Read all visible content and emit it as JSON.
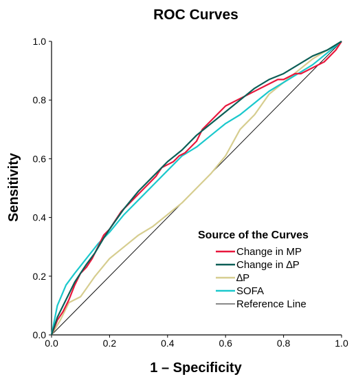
{
  "chart_data": {
    "type": "line",
    "title": "ROC Curves",
    "xlabel": "1 – Specificity",
    "ylabel": "Sensitivity",
    "xlim": [
      0,
      1
    ],
    "ylim": [
      0,
      1
    ],
    "xticks": [
      "0.0",
      "0.2",
      "0.4",
      "0.6",
      "0.8",
      "1.0"
    ],
    "yticks": [
      "0.0",
      "0.2",
      "0.4",
      "0.6",
      "0.8",
      "1.0"
    ],
    "grid": false,
    "legend": {
      "title": "Source of the Curves",
      "placement": "bottom-right"
    },
    "series": [
      {
        "name": "Change in MP",
        "color": "#e8173c",
        "x": [
          0,
          0.02,
          0.04,
          0.06,
          0.08,
          0.1,
          0.12,
          0.14,
          0.16,
          0.18,
          0.2,
          0.22,
          0.24,
          0.26,
          0.28,
          0.3,
          0.32,
          0.34,
          0.36,
          0.38,
          0.4,
          0.42,
          0.44,
          0.46,
          0.48,
          0.5,
          0.52,
          0.54,
          0.56,
          0.58,
          0.6,
          0.62,
          0.64,
          0.66,
          0.68,
          0.7,
          0.72,
          0.74,
          0.76,
          0.78,
          0.8,
          0.82,
          0.84,
          0.86,
          0.88,
          0.9,
          0.92,
          0.94,
          0.96,
          0.98,
          1.0
        ],
        "y": [
          0,
          0.05,
          0.08,
          0.12,
          0.17,
          0.21,
          0.23,
          0.26,
          0.3,
          0.34,
          0.36,
          0.39,
          0.42,
          0.44,
          0.46,
          0.48,
          0.5,
          0.52,
          0.54,
          0.57,
          0.58,
          0.59,
          0.61,
          0.62,
          0.64,
          0.66,
          0.7,
          0.72,
          0.74,
          0.76,
          0.78,
          0.79,
          0.8,
          0.81,
          0.82,
          0.83,
          0.84,
          0.85,
          0.86,
          0.87,
          0.87,
          0.88,
          0.89,
          0.89,
          0.9,
          0.91,
          0.92,
          0.93,
          0.95,
          0.97,
          1.0
        ]
      },
      {
        "name": "Change in ∆P",
        "color": "#0b5e56",
        "x": [
          0,
          0.02,
          0.04,
          0.06,
          0.08,
          0.1,
          0.12,
          0.15,
          0.18,
          0.2,
          0.25,
          0.3,
          0.35,
          0.4,
          0.45,
          0.5,
          0.55,
          0.6,
          0.65,
          0.7,
          0.75,
          0.8,
          0.85,
          0.9,
          0.95,
          1.0
        ],
        "y": [
          0,
          0.06,
          0.1,
          0.14,
          0.18,
          0.21,
          0.24,
          0.28,
          0.33,
          0.36,
          0.43,
          0.49,
          0.54,
          0.59,
          0.63,
          0.68,
          0.72,
          0.76,
          0.8,
          0.84,
          0.87,
          0.89,
          0.92,
          0.95,
          0.97,
          1.0
        ]
      },
      {
        "name": "∆P",
        "color": "#d6cd8f",
        "x": [
          0,
          0.03,
          0.06,
          0.1,
          0.15,
          0.2,
          0.25,
          0.3,
          0.35,
          0.4,
          0.45,
          0.5,
          0.55,
          0.6,
          0.65,
          0.7,
          0.75,
          0.8,
          0.85,
          0.9,
          0.95,
          1.0
        ],
        "y": [
          0,
          0.05,
          0.11,
          0.13,
          0.2,
          0.26,
          0.3,
          0.34,
          0.37,
          0.41,
          0.45,
          0.5,
          0.55,
          0.61,
          0.7,
          0.75,
          0.82,
          0.86,
          0.9,
          0.94,
          0.97,
          1.0
        ]
      },
      {
        "name": "SOFA",
        "color": "#1ac8cc",
        "x": [
          0,
          0.02,
          0.05,
          0.08,
          0.12,
          0.16,
          0.2,
          0.25,
          0.3,
          0.35,
          0.4,
          0.45,
          0.5,
          0.55,
          0.6,
          0.65,
          0.7,
          0.75,
          0.8,
          0.85,
          0.9,
          0.95,
          1.0
        ],
        "y": [
          0,
          0.1,
          0.17,
          0.21,
          0.26,
          0.31,
          0.35,
          0.41,
          0.46,
          0.51,
          0.56,
          0.61,
          0.64,
          0.68,
          0.72,
          0.75,
          0.79,
          0.83,
          0.86,
          0.89,
          0.92,
          0.96,
          1.0
        ]
      },
      {
        "name": "Reference Line",
        "color": "#111111",
        "x": [
          0,
          1
        ],
        "y": [
          0,
          1
        ]
      }
    ]
  }
}
